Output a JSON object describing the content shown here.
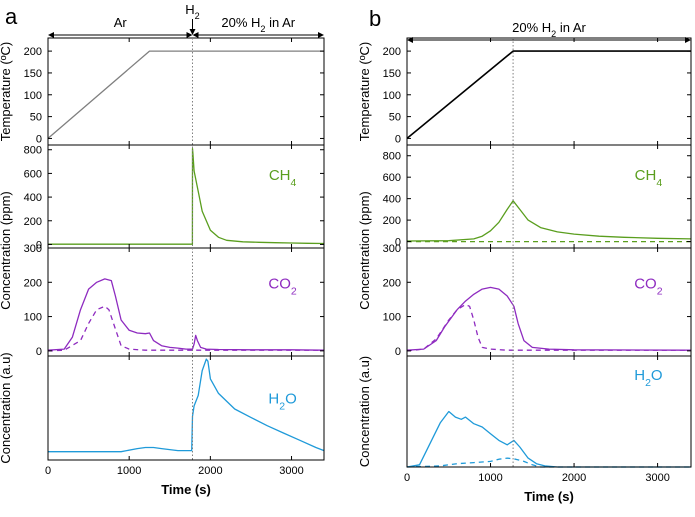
{
  "colors": {
    "axis": "#000000",
    "temp_a": "#7f7f7f",
    "temp_b": "#000000",
    "ch4": "#5a9e1e",
    "co2": "#8e2bc0",
    "h2o": "#1f9ad9",
    "vline": "#808080"
  },
  "chart_data": [
    {
      "panel": "a",
      "type": "line",
      "shared_xlabel": "Time (s)",
      "xlim": [
        0,
        3400
      ],
      "xticks": [
        0,
        1000,
        2000,
        3000
      ],
      "marker_time": 1780,
      "annotations": [
        {
          "text": "Ar",
          "from": 0,
          "to": 1780
        },
        {
          "text": "H",
          "sub": "2",
          "at": 1780
        },
        {
          "text": "20% H",
          "sub": "2",
          "after": " in Ar",
          "from": 1780,
          "to": 3400
        }
      ],
      "subplots": [
        {
          "name": "temperature",
          "ylabel": "Temperature (ºC)",
          "ylim": [
            -15,
            230
          ],
          "yticks": [
            0,
            50,
            100,
            150,
            200
          ],
          "yticklabels": true,
          "series": [
            {
              "name": "Temperature",
              "color_key": "temp_a",
              "x": [
                0,
                1250,
                3400
              ],
              "y": [
                0,
                200,
                200
              ]
            }
          ]
        },
        {
          "name": "ch4",
          "ylabel": "Concentration (ppm)",
          "ylim": [
            -30,
            840
          ],
          "yticks": [
            0,
            200,
            400,
            600,
            800
          ],
          "yticklabels": true,
          "label": "CH",
          "label_sub": "4",
          "label_color_key": "ch4",
          "label_pos": [
            0.85,
            0.28
          ],
          "series": [
            {
              "name": "CH4",
              "color_key": "ch4",
              "x": [
                0,
                1000,
                1779,
                1780,
                1785,
                1800,
                1850,
                1900,
                2000,
                2100,
                2200,
                2400,
                2600,
                2800,
                3000,
                3200,
                3400
              ],
              "y": [
                2,
                2,
                2,
                810,
                770,
                620,
                450,
                280,
                120,
                60,
                35,
                22,
                18,
                15,
                12,
                10,
                8
              ]
            }
          ]
        },
        {
          "name": "co2",
          "ylabel": "",
          "ylim": [
            -15,
            300
          ],
          "yticks": [
            0,
            100,
            200,
            300
          ],
          "yticklabels": true,
          "label": "CO",
          "label_sub": "2",
          "label_color_key": "co2",
          "label_pos": [
            0.85,
            0.32
          ],
          "series": [
            {
              "name": "CO2",
              "color_key": "co2",
              "x": [
                0,
                200,
                300,
                400,
                500,
                600,
                700,
                780,
                830,
                900,
                1000,
                1100,
                1200,
                1250,
                1300,
                1400,
                1500,
                1600,
                1700,
                1780,
                1800,
                1820,
                1840,
                1880,
                1950,
                2100,
                2500,
                3000,
                3400
              ],
              "y": [
                2,
                5,
                40,
                120,
                180,
                200,
                210,
                205,
                160,
                90,
                60,
                52,
                50,
                52,
                30,
                15,
                10,
                8,
                5,
                5,
                20,
                45,
                30,
                10,
                5,
                4,
                3,
                3,
                2
              ]
            },
            {
              "name": "CO2 (dashed)",
              "color_key": "co2",
              "dashed": true,
              "x": [
                0,
                200,
                400,
                500,
                600,
                700,
                750,
                850,
                900,
                1000,
                1200,
                3400
              ],
              "y": [
                0,
                2,
                30,
                80,
                120,
                130,
                120,
                50,
                15,
                5,
                2,
                2
              ]
            }
          ]
        },
        {
          "name": "h2o",
          "ylabel": "Concentration (a.u)",
          "ylim": [
            0,
            1
          ],
          "yticks": [],
          "yticklabels": false,
          "label": "H",
          "label_sub": "2",
          "label_after": "O",
          "label_color_key": "h2o",
          "label_pos": [
            0.85,
            0.4
          ],
          "series": [
            {
              "name": "H2O",
              "color_key": "h2o",
              "x": [
                0,
                900,
                1100,
                1200,
                1300,
                1400,
                1600,
                1770,
                1780,
                1800,
                1850,
                1900,
                1950,
                1970,
                2000,
                2100,
                2300,
                2500,
                2700,
                2900,
                3100,
                3300,
                3400
              ],
              "y": [
                0.08,
                0.08,
                0.11,
                0.12,
                0.12,
                0.11,
                0.09,
                0.09,
                0.42,
                0.52,
                0.62,
                0.86,
                0.97,
                0.95,
                0.78,
                0.64,
                0.49,
                0.41,
                0.33,
                0.26,
                0.19,
                0.12,
                0.09
              ]
            }
          ]
        }
      ]
    },
    {
      "panel": "b",
      "type": "line",
      "shared_xlabel": "Time (s)",
      "xlim": [
        0,
        3400
      ],
      "xticks": [
        0,
        1000,
        2000,
        3000
      ],
      "marker_time": 1270,
      "annotations": [
        {
          "text": "20% H",
          "sub": "2",
          "after": " in Ar",
          "from": 0,
          "to": 3400
        }
      ],
      "subplots": [
        {
          "name": "temperature",
          "ylabel": "Temperature (ºC)",
          "ylim": [
            -15,
            230
          ],
          "yticks": [
            0,
            50,
            100,
            150,
            200
          ],
          "yticklabels": true,
          "series": [
            {
              "name": "Temperature",
              "color_key": "temp_b",
              "x": [
                0,
                1270,
                3400
              ],
              "y": [
                0,
                200,
                200
              ]
            }
          ]
        },
        {
          "name": "ch4",
          "ylabel": "Concentration (ppm)",
          "ylim": [
            -60,
            900
          ],
          "yticks": [
            0,
            200,
            400,
            600,
            800
          ],
          "yticklabels": true,
          "label": "CH",
          "label_sub": "4",
          "label_color_key": "ch4",
          "label_pos": [
            0.85,
            0.28
          ],
          "series": [
            {
              "name": "CH4",
              "color_key": "ch4",
              "x": [
                0,
                500,
                800,
                900,
                1000,
                1100,
                1200,
                1270,
                1350,
                1450,
                1600,
                1800,
                2000,
                2300,
                2600,
                3000,
                3400
              ],
              "y": [
                5,
                8,
                25,
                50,
                100,
                180,
                300,
                380,
                300,
                200,
                130,
                90,
                70,
                50,
                40,
                30,
                25
              ]
            },
            {
              "name": "CH4 (dashed)",
              "color_key": "ch4",
              "dashed": true,
              "x": [
                0,
                3400
              ],
              "y": [
                0,
                0
              ]
            }
          ]
        },
        {
          "name": "co2",
          "ylabel": "",
          "ylim": [
            -15,
            300
          ],
          "yticks": [
            0,
            100,
            200,
            300
          ],
          "yticklabels": true,
          "label": "CO",
          "label_sub": "2",
          "label_color_key": "co2",
          "label_pos": [
            0.85,
            0.32
          ],
          "series": [
            {
              "name": "CO2",
              "color_key": "co2",
              "x": [
                0,
                200,
                350,
                450,
                600,
                700,
                800,
                900,
                1000,
                1100,
                1200,
                1280,
                1330,
                1400,
                1500,
                1700,
                2000,
                3400
              ],
              "y": [
                2,
                5,
                30,
                70,
                120,
                145,
                165,
                180,
                185,
                180,
                160,
                130,
                80,
                30,
                10,
                5,
                3,
                2
              ]
            },
            {
              "name": "CO2 (dashed)",
              "color_key": "co2",
              "dashed": true,
              "x": [
                0,
                200,
                350,
                500,
                600,
                700,
                750,
                800,
                850,
                900,
                1000,
                1200,
                3400
              ],
              "y": [
                0,
                5,
                35,
                90,
                120,
                135,
                130,
                90,
                40,
                10,
                5,
                2,
                2
              ]
            }
          ]
        },
        {
          "name": "h2o",
          "ylabel": "Concentration (a.u)",
          "ylim": [
            0,
            1
          ],
          "yticks": [],
          "yticklabels": false,
          "label": "H",
          "label_sub": "2",
          "label_after": "O",
          "label_color_key": "h2o",
          "label_pos": [
            0.85,
            0.16
          ],
          "series": [
            {
              "name": "H2O",
              "color_key": "h2o",
              "x": [
                0,
                150,
                300,
                400,
                500,
                580,
                650,
                700,
                800,
                900,
                1000,
                1100,
                1200,
                1280,
                1350,
                1450,
                1550,
                1650,
                1800,
                3400
              ],
              "y": [
                0,
                0.02,
                0.25,
                0.4,
                0.5,
                0.45,
                0.43,
                0.45,
                0.39,
                0.36,
                0.3,
                0.24,
                0.2,
                0.24,
                0.18,
                0.08,
                0.03,
                0.01,
                0,
                0
              ]
            },
            {
              "name": "H2O (dashed)",
              "color_key": "h2o",
              "dashed": true,
              "x": [
                0,
                400,
                600,
                800,
                1000,
                1100,
                1200,
                1300,
                1400,
                1500,
                1600,
                3400
              ],
              "y": [
                0,
                0.01,
                0.03,
                0.04,
                0.05,
                0.07,
                0.08,
                0.07,
                0.05,
                0.02,
                0,
                0
              ]
            }
          ]
        }
      ]
    }
  ],
  "panel_labels": [
    "a",
    "b"
  ]
}
